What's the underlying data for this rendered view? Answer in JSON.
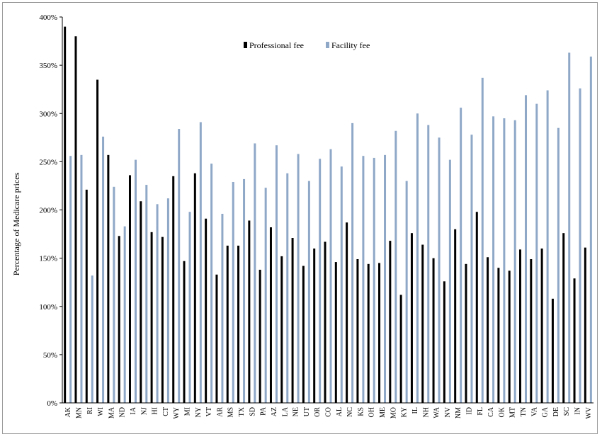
{
  "chart_data": {
    "type": "bar",
    "title": "",
    "xlabel": "",
    "ylabel": "Percentage of Medicare prices",
    "ylim": [
      0,
      400
    ],
    "yticks": [
      0,
      50,
      100,
      150,
      200,
      250,
      300,
      350,
      400
    ],
    "ytick_labels": [
      "0%",
      "50%",
      "100%",
      "150%",
      "200%",
      "250%",
      "300%",
      "350%",
      "400%"
    ],
    "grid": false,
    "legend_position": "top-center",
    "categories": [
      "AK",
      "MN",
      "RI",
      "WI",
      "MA",
      "ND",
      "IA",
      "NJ",
      "HI",
      "CT",
      "WY",
      "MI",
      "NY",
      "VT",
      "AR",
      "MS",
      "TX",
      "SD",
      "PA",
      "AZ",
      "LA",
      "NE",
      "UT",
      "OR",
      "CO",
      "AL",
      "NC",
      "KS",
      "OH",
      "ME",
      "MO",
      "KY",
      "IL",
      "NH",
      "WA",
      "NV",
      "NM",
      "ID",
      "FL",
      "CA",
      "OK",
      "MT",
      "TN",
      "VA",
      "GA",
      "DE",
      "SC",
      "IN",
      "WV"
    ],
    "series": [
      {
        "name": "Professional fee",
        "color": "#000000",
        "values": [
          390,
          380,
          221,
          335,
          257,
          173,
          236,
          209,
          177,
          172,
          235,
          147,
          238,
          191,
          133,
          163,
          163,
          189,
          138,
          182,
          152,
          171,
          142,
          160,
          167,
          146,
          187,
          149,
          144,
          145,
          168,
          112,
          176,
          164,
          150,
          126,
          180,
          144,
          198,
          151,
          140,
          137,
          159,
          149,
          160,
          108,
          176,
          129,
          161
        ]
      },
      {
        "name": "Facility fee",
        "color": "#8fa8c8",
        "values": [
          256,
          257,
          132,
          276,
          224,
          183,
          252,
          226,
          206,
          212,
          284,
          198,
          291,
          248,
          196,
          229,
          232,
          269,
          223,
          267,
          238,
          258,
          230,
          253,
          263,
          245,
          290,
          256,
          254,
          257,
          282,
          230,
          300,
          288,
          275,
          252,
          306,
          278,
          337,
          297,
          295,
          293,
          319,
          310,
          324,
          285,
          363,
          326,
          359
        ]
      }
    ]
  }
}
